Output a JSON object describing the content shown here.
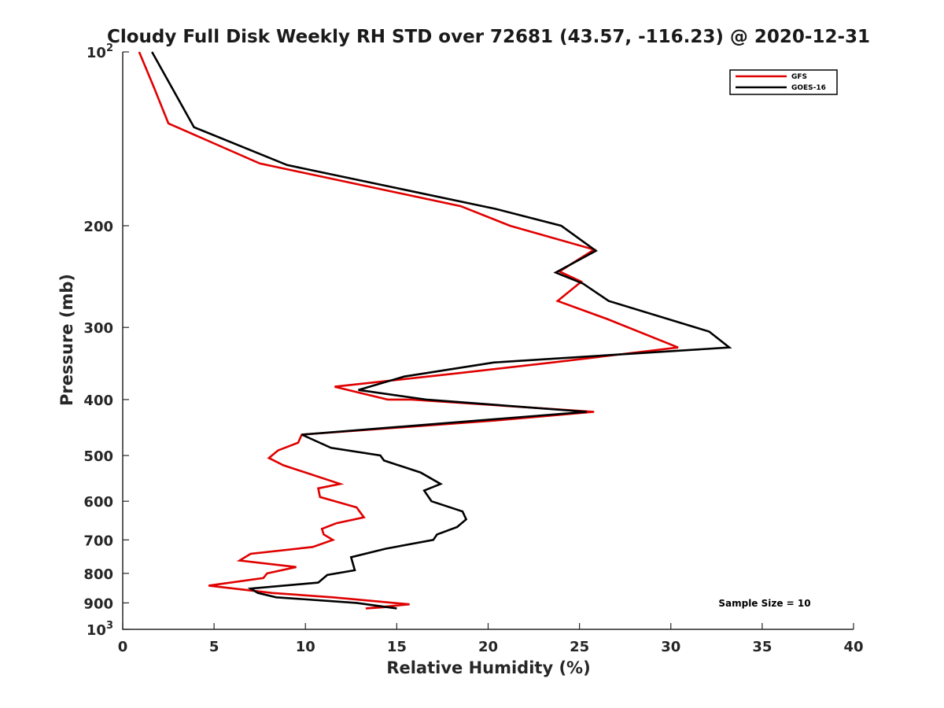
{
  "chart_data": {
    "type": "line",
    "title": "Cloudy Full Disk Weekly RH STD over 72681 (43.57, -116.23) @ 2020-12-31",
    "xlabel": "Relative Humidity (%)",
    "ylabel": "Pressure (mb)",
    "xlim": [
      0,
      40
    ],
    "ylim": [
      1000,
      100
    ],
    "y_scale": "log",
    "y_reversed": true,
    "grid": false,
    "legend_position": "top-right",
    "x_ticks": [
      "0",
      "5",
      "10",
      "15",
      "20",
      "25",
      "30",
      "35",
      "40"
    ],
    "y_ticks": [
      {
        "value": 100,
        "base": "10",
        "exp": "2"
      },
      {
        "value": 200,
        "label": "200"
      },
      {
        "value": 300,
        "label": "300"
      },
      {
        "value": 400,
        "label": "400"
      },
      {
        "value": 500,
        "label": "500"
      },
      {
        "value": 600,
        "label": "600"
      },
      {
        "value": 700,
        "label": "700"
      },
      {
        "value": 800,
        "label": "800"
      },
      {
        "value": 900,
        "label": "900"
      },
      {
        "value": 1000,
        "base": "10",
        "exp": "3"
      }
    ],
    "annotation": "Sample Size = 10",
    "series": [
      {
        "name": "GFS",
        "color": "#e00000",
        "points": [
          [
            0.9,
            100
          ],
          [
            1.7,
            115
          ],
          [
            2.5,
            133
          ],
          [
            7.5,
            156
          ],
          [
            18.5,
            185
          ],
          [
            21.2,
            200
          ],
          [
            25.8,
            220
          ],
          [
            23.9,
            240
          ],
          [
            25.1,
            250
          ],
          [
            23.8,
            270
          ],
          [
            26.5,
            290
          ],
          [
            30.4,
            325
          ],
          [
            23.5,
            345
          ],
          [
            18.4,
            360
          ],
          [
            11.6,
            380
          ],
          [
            14.5,
            400
          ],
          [
            15.8,
            400
          ],
          [
            25.8,
            420
          ],
          [
            20.3,
            435
          ],
          [
            9.8,
            460
          ],
          [
            9.6,
            475
          ],
          [
            8.5,
            490
          ],
          [
            8.0,
            505
          ],
          [
            8.8,
            520
          ],
          [
            11.9,
            560
          ],
          [
            10.7,
            570
          ],
          [
            10.8,
            590
          ],
          [
            12.8,
            615
          ],
          [
            13.2,
            640
          ],
          [
            11.7,
            655
          ],
          [
            10.9,
            670
          ],
          [
            11.0,
            685
          ],
          [
            11.5,
            700
          ],
          [
            10.4,
            720
          ],
          [
            7.0,
            740
          ],
          [
            6.4,
            760
          ],
          [
            9.5,
            780
          ],
          [
            7.9,
            800
          ],
          [
            7.7,
            815
          ],
          [
            4.7,
            840
          ],
          [
            8.2,
            865
          ],
          [
            11.5,
            880
          ],
          [
            15.7,
            905
          ],
          [
            13.3,
            920
          ],
          [
            14.4,
            915
          ]
        ]
      },
      {
        "name": "GOES-16",
        "color": "#000000",
        "points": [
          [
            1.6,
            100
          ],
          [
            3.9,
            135
          ],
          [
            9.0,
            157
          ],
          [
            20.4,
            187
          ],
          [
            24.0,
            200
          ],
          [
            25.9,
            221
          ],
          [
            23.7,
            241
          ],
          [
            25.2,
            252
          ],
          [
            26.6,
            270
          ],
          [
            32.1,
            305
          ],
          [
            33.2,
            325
          ],
          [
            20.3,
            345
          ],
          [
            15.4,
            365
          ],
          [
            12.9,
            385
          ],
          [
            16.6,
            400
          ],
          [
            25.4,
            420
          ],
          [
            9.8,
            460
          ],
          [
            11.4,
            485
          ],
          [
            14.1,
            500
          ],
          [
            14.3,
            510
          ],
          [
            16.3,
            535
          ],
          [
            17.4,
            560
          ],
          [
            16.5,
            575
          ],
          [
            16.9,
            600
          ],
          [
            18.6,
            625
          ],
          [
            18.8,
            645
          ],
          [
            18.3,
            665
          ],
          [
            17.2,
            685
          ],
          [
            17.0,
            700
          ],
          [
            14.4,
            725
          ],
          [
            12.5,
            750
          ],
          [
            12.7,
            790
          ],
          [
            11.2,
            805
          ],
          [
            10.7,
            830
          ],
          [
            7.0,
            850
          ],
          [
            7.4,
            865
          ],
          [
            8.4,
            880
          ],
          [
            12.8,
            900
          ],
          [
            15.0,
            920
          ]
        ]
      }
    ]
  }
}
